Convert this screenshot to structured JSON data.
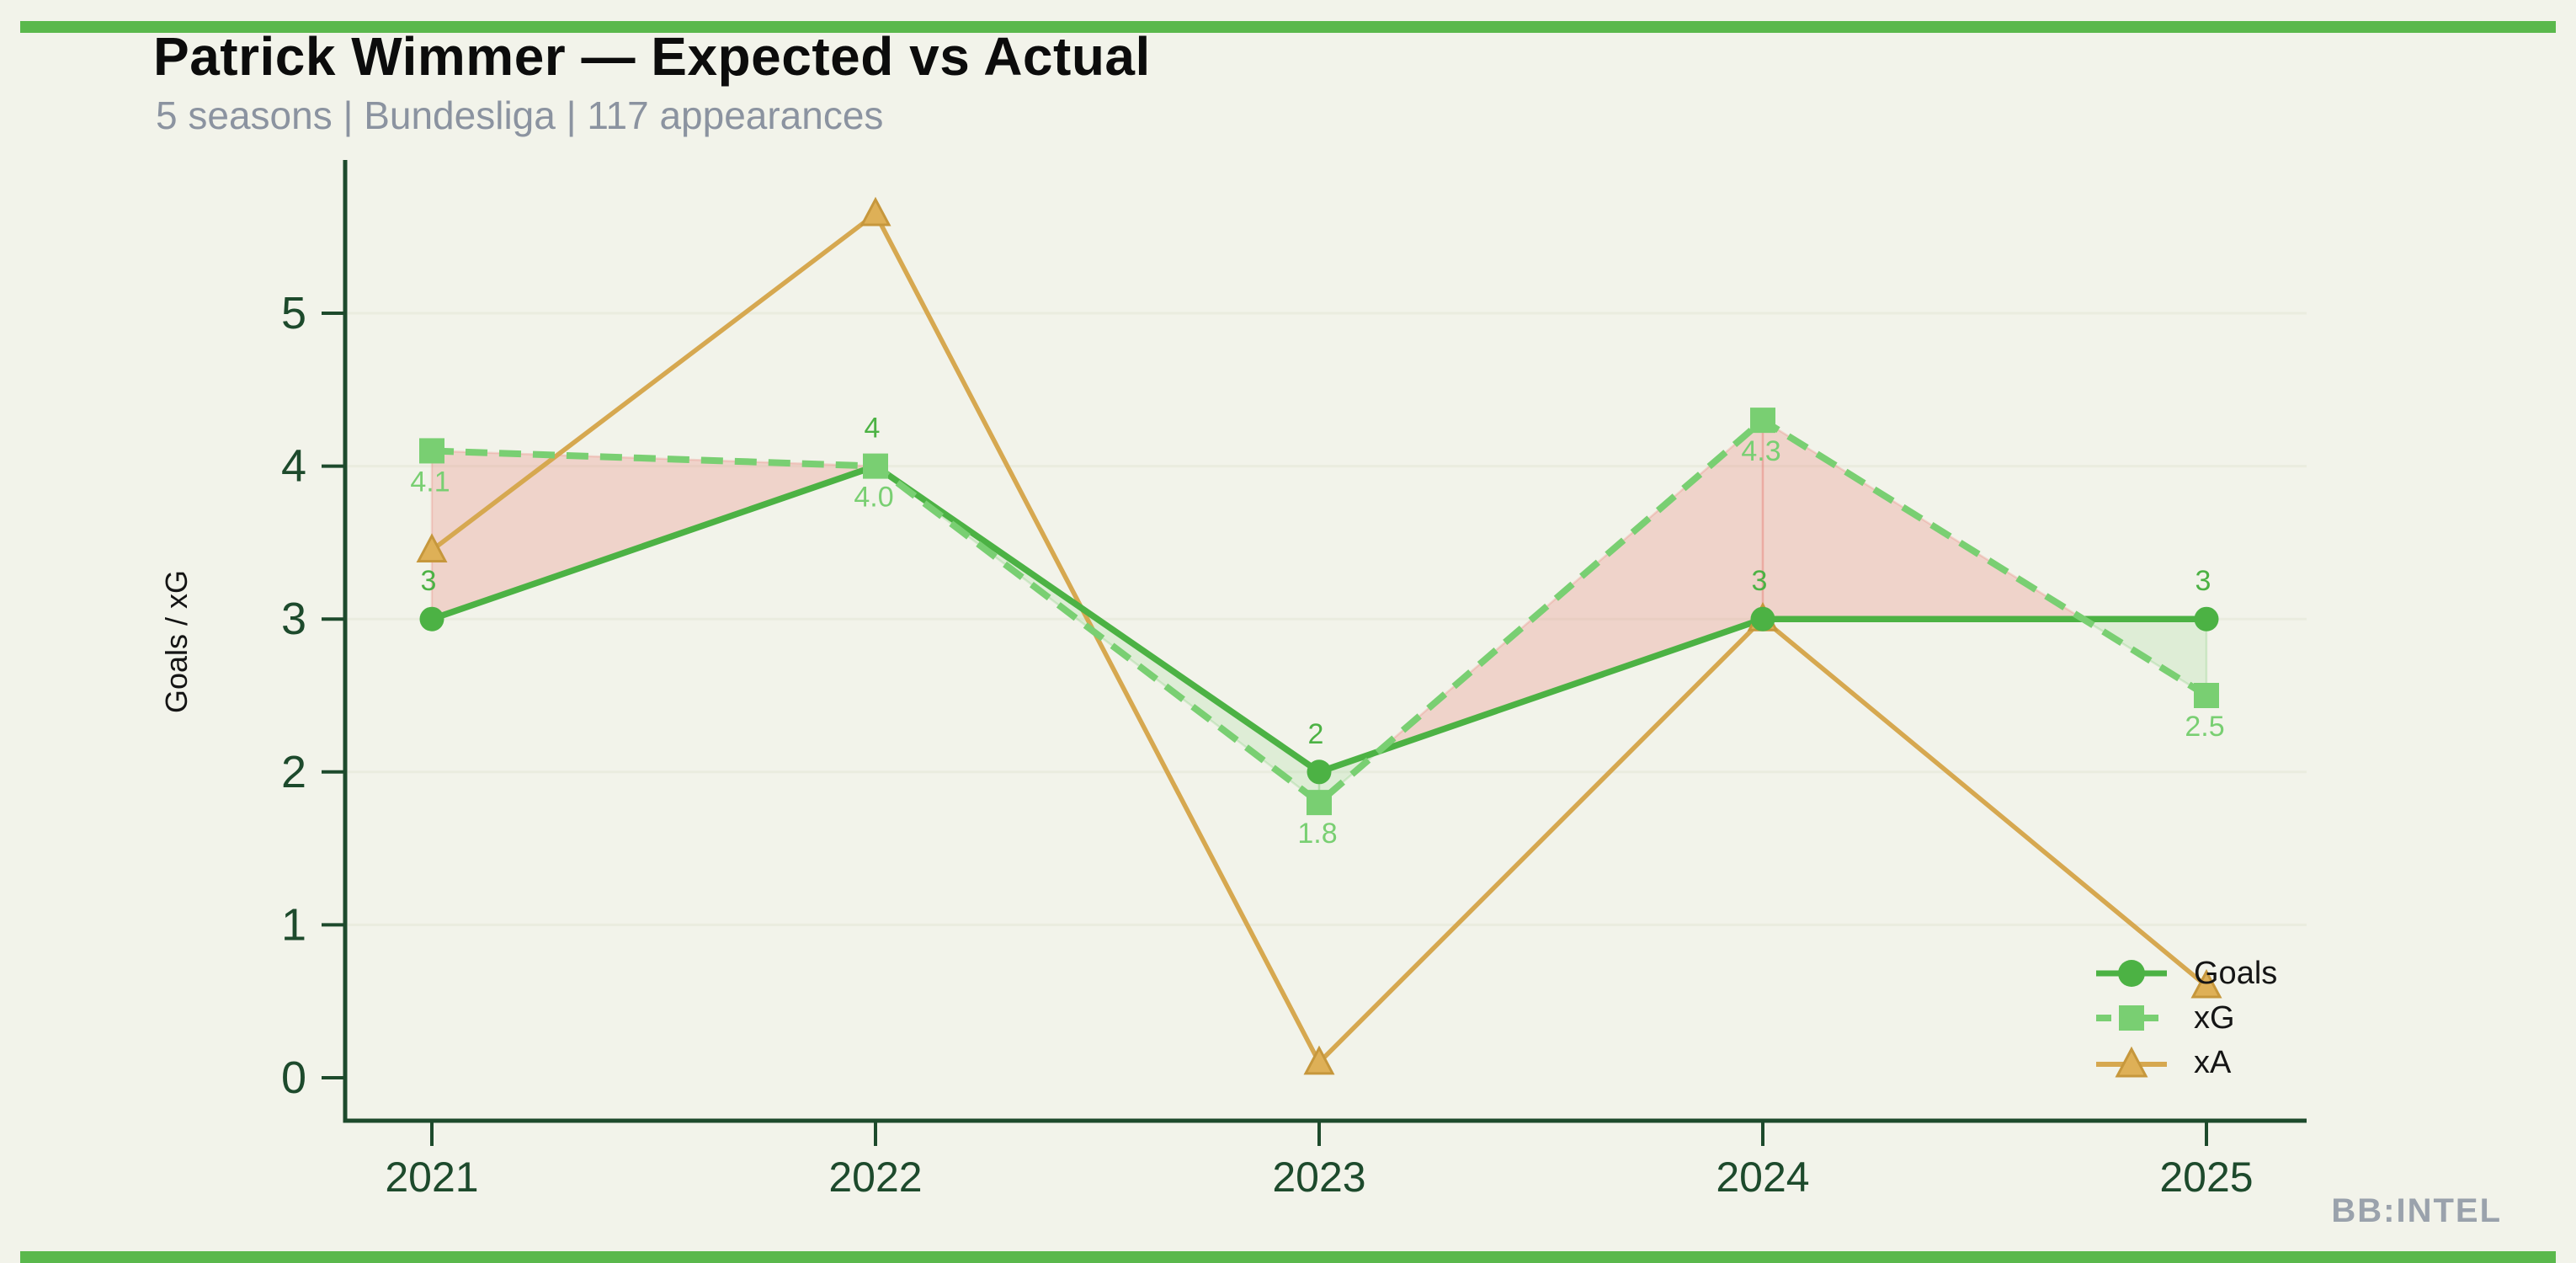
{
  "page": {
    "background": "#f2f3ea",
    "accent_bar_color": "#5ab84c"
  },
  "header": {
    "title": "Patrick Wimmer — Expected vs Actual",
    "subtitle": "5 seasons | Bundesliga | 117 appearances"
  },
  "watermark": {
    "text": "BB:INTEL",
    "color": "#9aa2ac"
  },
  "legend": {
    "position": "lower right",
    "items": [
      {
        "label": "Goals"
      },
      {
        "label": "xG"
      },
      {
        "label": "xA"
      }
    ]
  },
  "chart_data": {
    "type": "line",
    "title": "Patrick Wimmer — Expected vs Actual",
    "subtitle": "5 seasons | Bundesliga | 117 appearances",
    "x": [
      2021,
      2022,
      2023,
      2024,
      2025
    ],
    "x_tick_labels": [
      "2021",
      "2022",
      "2023",
      "2024",
      "2025"
    ],
    "y_tick_labels": [
      "0",
      "1",
      "2",
      "3",
      "4",
      "5"
    ],
    "xlabel": "",
    "ylabel": "Goals / xG",
    "ylim": [
      0,
      6
    ],
    "grid": true,
    "legend_position": "lower right",
    "series": [
      {
        "name": "Goals",
        "style": "solid",
        "marker": "circle",
        "color": "#4cb244",
        "values": [
          3,
          4,
          2,
          3,
          3
        ],
        "point_labels": [
          "3",
          "4",
          "2",
          "3",
          "3"
        ]
      },
      {
        "name": "xG",
        "style": "dashed",
        "marker": "square",
        "color": "#79cf72",
        "values": [
          4.1,
          4.0,
          1.8,
          4.3,
          2.5
        ],
        "point_labels": [
          "4.1",
          "4.0",
          "1.8",
          "4.3",
          "2.5"
        ]
      },
      {
        "name": "xA",
        "style": "solid",
        "marker": "triangle",
        "color": "#d6a850",
        "marker_fill": "#deb057",
        "marker_edge": "#c6973c",
        "values": [
          3.45,
          5.65,
          0.1,
          3.0,
          0.6
        ],
        "point_labels": []
      }
    ],
    "fill_between": {
      "series_a": "xG",
      "series_b": "Goals",
      "a_above_color": "#e87970",
      "a_above_opacity": 0.26,
      "b_above_color": "#76cd70",
      "b_above_opacity": 0.16
    },
    "colors": {
      "spine": "#1d4a2c",
      "tick_label": "#1d4a2c",
      "ylabel_color": "#141414",
      "grid_color": "#eaecdf"
    }
  }
}
